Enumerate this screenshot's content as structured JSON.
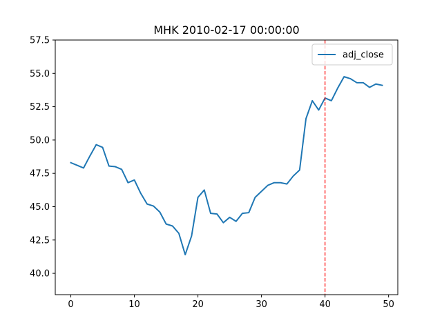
{
  "chart_data": {
    "type": "line",
    "title": "MHK 2010-02-17 00:00:00",
    "xlabel": "",
    "ylabel": "",
    "xlim": [
      -2.45,
      51.45
    ],
    "ylim": [
      38.4,
      57.5
    ],
    "xticks": [
      0,
      10,
      20,
      30,
      40,
      50
    ],
    "xtick_labels": [
      "0",
      "10",
      "20",
      "30",
      "40",
      "50"
    ],
    "yticks": [
      40.0,
      42.5,
      45.0,
      47.5,
      50.0,
      52.5,
      55.0,
      57.5
    ],
    "ytick_labels": [
      "40.0",
      "42.5",
      "45.0",
      "47.5",
      "50.0",
      "52.5",
      "55.0",
      "57.5"
    ],
    "grid": false,
    "legend_position": "top-right",
    "series": [
      {
        "name": "adj_close",
        "color": "#1f77b4",
        "x": [
          0,
          1,
          2,
          3,
          4,
          5,
          6,
          7,
          8,
          9,
          10,
          11,
          12,
          13,
          14,
          15,
          16,
          17,
          18,
          19,
          20,
          21,
          22,
          23,
          24,
          25,
          26,
          27,
          28,
          29,
          30,
          31,
          32,
          33,
          34,
          35,
          36,
          37,
          38,
          39,
          40,
          41,
          42,
          43,
          44,
          45,
          46,
          47,
          48,
          49
        ],
        "y": [
          48.3,
          48.1,
          47.9,
          48.8,
          49.65,
          49.45,
          48.05,
          48.0,
          47.8,
          46.8,
          47.0,
          46.0,
          45.2,
          45.05,
          44.6,
          43.7,
          43.55,
          43.0,
          41.4,
          42.8,
          45.7,
          46.25,
          44.5,
          44.45,
          43.8,
          44.2,
          43.9,
          44.5,
          44.55,
          45.7,
          46.15,
          46.6,
          46.8,
          46.8,
          46.7,
          47.3,
          47.75,
          51.6,
          52.95,
          52.25,
          53.15,
          52.95,
          53.9,
          54.75,
          54.6,
          54.3,
          54.3,
          53.95,
          54.2,
          54.1
        ]
      }
    ],
    "annotations": [
      {
        "type": "vline",
        "x": 40,
        "color": "#ff0000",
        "style": "dashed"
      }
    ]
  }
}
